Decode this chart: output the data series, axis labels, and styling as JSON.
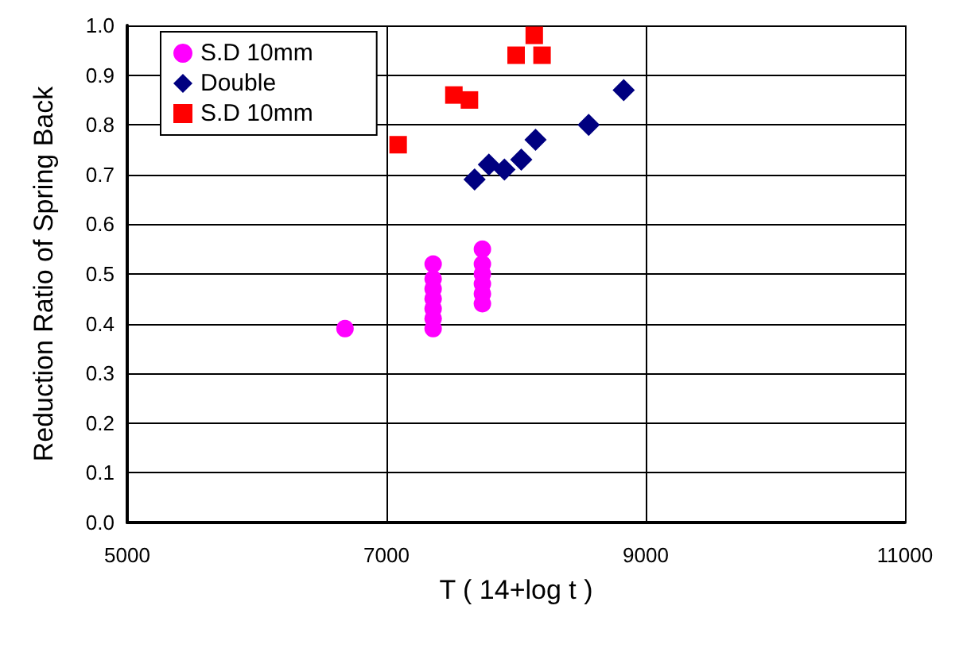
{
  "chart_data": {
    "type": "scatter",
    "xlabel": "T ( 14+log t )",
    "ylabel": "Reduction Ratio of Spring Back",
    "xlim": [
      5000,
      11000
    ],
    "xticks": [
      5000,
      7000,
      9000,
      11000
    ],
    "ylim": [
      0,
      1
    ],
    "yticks": [
      {
        "value": 0,
        "label": "0.0"
      },
      {
        "value": 0.1,
        "label": "0.1"
      },
      {
        "value": 0.2,
        "label": "0.2"
      },
      {
        "value": 0.3,
        "label": "0.3"
      },
      {
        "value": 0.4,
        "label": "0.4"
      },
      {
        "value": 0.5,
        "label": "0.5"
      },
      {
        "value": 0.6,
        "label": "0.6"
      },
      {
        "value": 0.7,
        "label": "0.7"
      },
      {
        "value": 0.8,
        "label": "0.8"
      },
      {
        "value": 0.9,
        "label": "0.9"
      },
      {
        "value": 1,
        "label": "1.0"
      }
    ],
    "grid": true,
    "legend": "top left",
    "series": [
      {
        "name": "S.D 10mm",
        "color": "#ff00ff",
        "marker": "circle",
        "x": [
          6680,
          7360,
          7360,
          7360,
          7360,
          7360,
          7360,
          7360,
          7740,
          7740,
          7740,
          7740,
          7740,
          7740
        ],
        "values": [
          0.39,
          0.39,
          0.41,
          0.43,
          0.45,
          0.47,
          0.49,
          0.52,
          0.44,
          0.46,
          0.48,
          0.5,
          0.52,
          0.55
        ]
      },
      {
        "name": "Double",
        "color": "#000080",
        "marker": "diamond",
        "x": [
          7680,
          7790,
          7910,
          8040,
          8150,
          8560,
          8830
        ],
        "values": [
          0.69,
          0.72,
          0.71,
          0.73,
          0.77,
          0.8,
          0.87
        ]
      },
      {
        "name": "S.D 10mm",
        "color": "#ff0000",
        "marker": "square",
        "x": [
          7090,
          7520,
          7640,
          8000,
          8140,
          8200
        ],
        "values": [
          0.76,
          0.86,
          0.85,
          0.94,
          0.98,
          0.94
        ]
      }
    ]
  }
}
